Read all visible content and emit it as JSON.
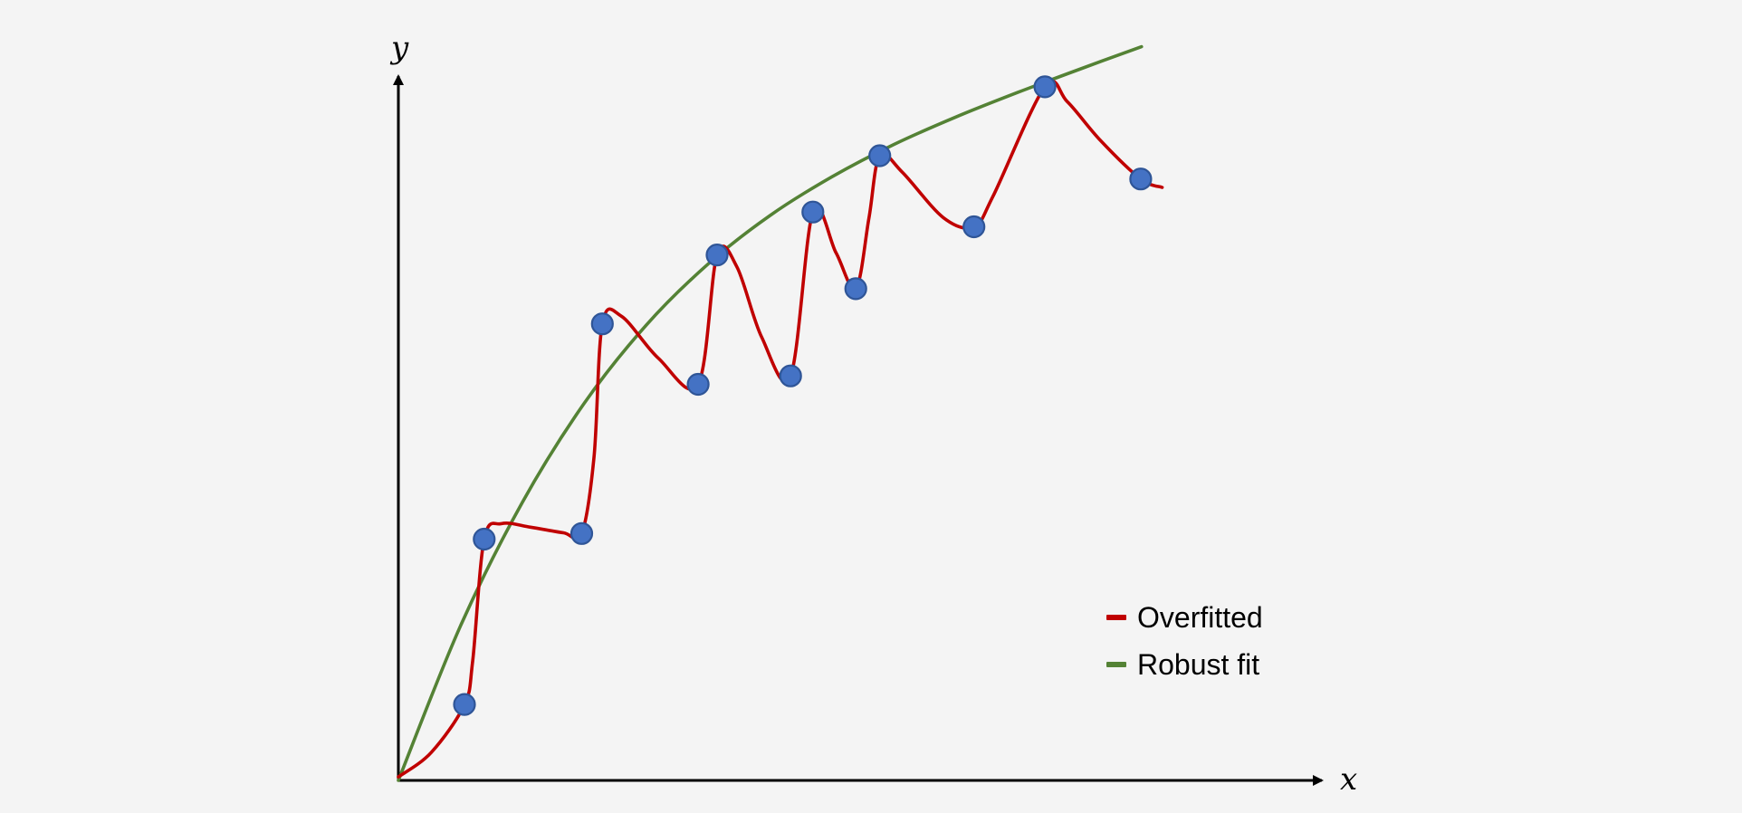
{
  "chart_data": {
    "type": "scatter",
    "title": "",
    "xlabel": "x",
    "ylabel": "y",
    "xlim": [
      0,
      100
    ],
    "ylim": [
      0,
      100
    ],
    "grid": false,
    "legend_position": "bottom-right",
    "points": {
      "x": [
        8,
        10.4,
        22.2,
        24.7,
        36.3,
        38.6,
        47.5,
        50.2,
        55.4,
        58.3,
        69.7,
        78.3,
        89.9
      ],
      "y": [
        10.8,
        34.3,
        35.1,
        64.9,
        56.3,
        74.7,
        57.5,
        80.8,
        69.9,
        88.8,
        78.7,
        98.6,
        85.5
      ],
      "color": "#4472c4"
    },
    "series": [
      {
        "name": "Overfitted",
        "color": "#c00000",
        "x": [
          0,
          4,
          8,
          9,
          10.4,
          12.5,
          16,
          20,
          22.2,
          23.7,
          24.7,
          27,
          31.5,
          36.3,
          38.6,
          41,
          44,
          47.5,
          50.2,
          53,
          55.4,
          57,
          58.3,
          61,
          66,
          69.7,
          72,
          78.3,
          81,
          85,
          89.9,
          92.5
        ],
        "y": [
          0.5,
          4,
          10.8,
          17,
          34.3,
          36.5,
          36,
          35.2,
          35.1,
          46,
          64.9,
          66,
          60,
          56.3,
          74.7,
          73,
          63,
          57.5,
          80.8,
          75,
          69.9,
          80,
          88.8,
          86.5,
          80,
          78.7,
          83,
          98.6,
          96.5,
          91,
          85.5,
          84.3
        ]
      },
      {
        "name": "Robust fit",
        "color": "#548235",
        "x": [
          0,
          7.5,
          15,
          22.5,
          30,
          37.5,
          45,
          52.5,
          60,
          67.5,
          75,
          82.5,
          90
        ],
        "y": [
          0,
          21.9,
          39.5,
          53.6,
          64.7,
          73.4,
          80.3,
          85.8,
          90.4,
          94.3,
          97.8,
          101.1,
          104.3
        ]
      }
    ]
  }
}
